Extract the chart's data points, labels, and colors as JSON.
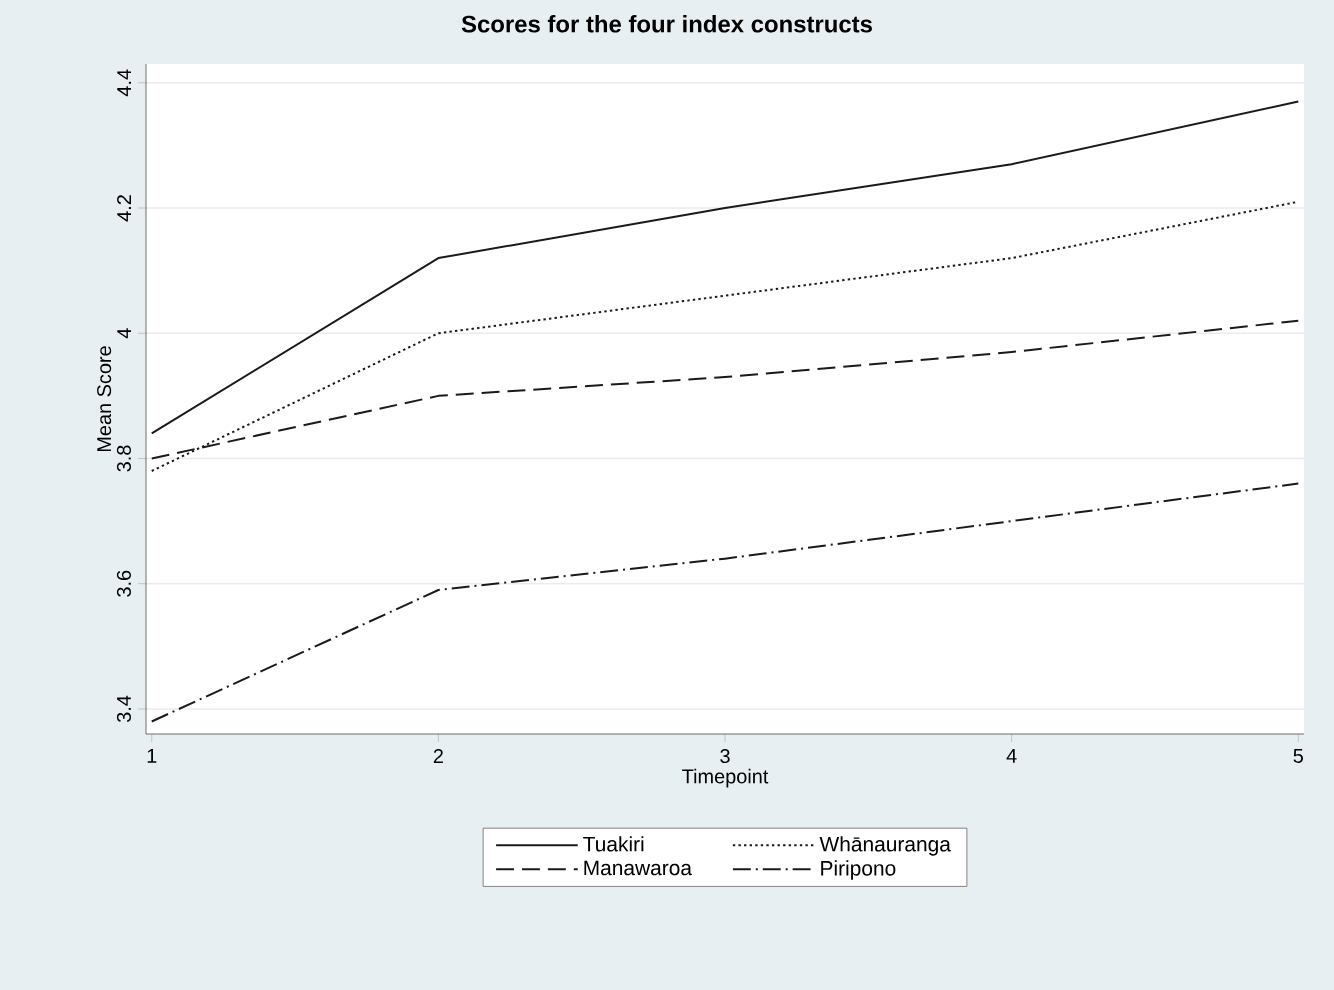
{
  "chart_data": {
    "type": "line",
    "title": "Scores for the four index constructs",
    "xlabel": "Timepoint",
    "ylabel": "Mean Score",
    "x": [
      1,
      2,
      3,
      4,
      5
    ],
    "series": [
      {
        "name": "Tuakiri",
        "color": "#1a1a1a",
        "line_style": "solid",
        "values": [
          3.84,
          4.12,
          4.2,
          4.27,
          4.37
        ]
      },
      {
        "name": "Whānauranga",
        "color": "#1a1a1a",
        "line_style": "dotted",
        "values": [
          3.78,
          4.0,
          4.06,
          4.12,
          4.21
        ]
      },
      {
        "name": "Manawaroa",
        "color": "#1a1a1a",
        "line_style": "dashed",
        "values": [
          3.8,
          3.9,
          3.93,
          3.97,
          4.02
        ]
      },
      {
        "name": "Piripono",
        "color": "#1a1a1a",
        "line_style": "dashdot",
        "values": [
          3.38,
          3.59,
          3.64,
          3.7,
          3.76
        ]
      }
    ],
    "xlim": [
      0.98,
      5.02
    ],
    "ylim": [
      3.36,
      4.43
    ],
    "xticks": [
      1,
      2,
      3,
      4,
      5
    ],
    "yticks": [
      3.4,
      3.6,
      3.8,
      4,
      4.2,
      4.4
    ],
    "grid": "y",
    "legend": "bottom",
    "marker": "none"
  }
}
